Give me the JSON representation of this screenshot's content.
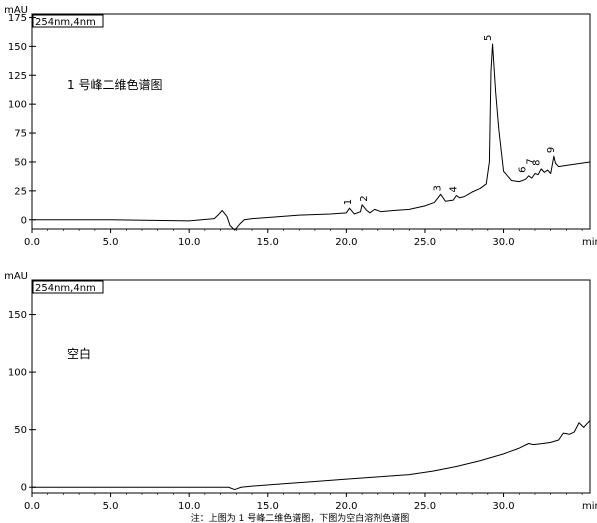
{
  "chart_data": [
    {
      "type": "line",
      "title": "1 号峰二维色谱图",
      "ylabel_unit": "mAU",
      "xlabel_unit": "min",
      "detector_label": "254nm,4nm",
      "xlim": [
        0.0,
        35.5
      ],
      "ylim": [
        -8,
        178
      ],
      "xticks": [
        "0.0",
        "5.0",
        "10.0",
        "15.0",
        "20.0",
        "25.0",
        "30.0"
      ],
      "yticks": [
        "0",
        "25",
        "50",
        "75",
        "100",
        "125",
        "150",
        "175"
      ],
      "series": [
        {
          "x": [
            0.0,
            5.0,
            10.0,
            11.6,
            11.9,
            12.1,
            12.4,
            12.6,
            12.9,
            13.2,
            13.5,
            14.0,
            15.0,
            17.0,
            19.0,
            20.0,
            20.2,
            20.5,
            20.9,
            21.0,
            21.3,
            21.5,
            21.8,
            22.2,
            23.0,
            24.0,
            25.0,
            25.6,
            26.0,
            26.3,
            26.8,
            27.0,
            27.2,
            27.5,
            28.0,
            28.5,
            28.9,
            29.1,
            29.2,
            29.3,
            29.5,
            29.7,
            30.0,
            30.5,
            31.0,
            31.4,
            31.6,
            31.8,
            32.0,
            32.2,
            32.4,
            32.6,
            32.8,
            33.0,
            33.2,
            33.3,
            33.5,
            34.0,
            35.5
          ],
          "y": [
            0,
            0,
            -1,
            1,
            5,
            8,
            3,
            -5,
            -9,
            -4,
            0,
            1,
            2,
            4,
            5,
            6,
            10,
            5,
            7,
            13,
            8,
            6,
            9,
            7,
            8,
            9,
            12,
            15,
            22,
            16,
            17,
            21,
            19,
            20,
            24,
            27,
            31,
            50,
            128,
            152,
            110,
            78,
            42,
            34,
            33,
            35,
            38,
            36,
            40,
            39,
            44,
            41,
            43,
            40,
            55,
            49,
            46,
            47,
            50
          ]
        }
      ],
      "peak_labels": [
        {
          "text": "1",
          "x": 20.3,
          "y": 10
        },
        {
          "text": "2",
          "x": 21.3,
          "y": 13
        },
        {
          "text": "3",
          "x": 26.0,
          "y": 22
        },
        {
          "text": "4",
          "x": 27.0,
          "y": 21
        },
        {
          "text": "5",
          "x": 29.2,
          "y": 152
        },
        {
          "text": "6",
          "x": 31.4,
          "y": 38
        },
        {
          "text": "7",
          "x": 31.9,
          "y": 45
        },
        {
          "text": "8",
          "x": 32.3,
          "y": 44
        },
        {
          "text": "9",
          "x": 33.2,
          "y": 55
        }
      ]
    },
    {
      "type": "line",
      "title": "空白",
      "ylabel_unit": "mAU",
      "xlabel_unit": "min",
      "detector_label": "254nm,4nm",
      "xlim": [
        0.0,
        35.5
      ],
      "ylim": [
        -5,
        180
      ],
      "xticks": [
        "0.0",
        "5.0",
        "10.0",
        "15.0",
        "20.0",
        "25.0",
        "30.0"
      ],
      "yticks": [
        "0",
        "50",
        "100",
        "150"
      ],
      "series": [
        {
          "x": [
            0.0,
            5.0,
            10.0,
            12.5,
            12.9,
            13.3,
            14.0,
            16.0,
            18.0,
            20.0,
            22.0,
            24.0,
            25.5,
            27.0,
            28.5,
            30.0,
            31.0,
            31.6,
            31.9,
            32.5,
            33.0,
            33.5,
            33.8,
            34.2,
            34.5,
            34.8,
            35.1,
            35.5
          ],
          "y": [
            0,
            0,
            0,
            0,
            -2,
            0,
            1,
            3,
            5,
            7,
            9,
            11,
            14,
            18,
            23,
            29,
            34,
            38,
            37,
            38,
            39,
            41,
            47,
            46,
            48,
            56,
            52,
            58
          ]
        }
      ]
    }
  ],
  "caption": "注：上图为 1 号峰二维色谱图，下图为空白溶剂色谱图"
}
